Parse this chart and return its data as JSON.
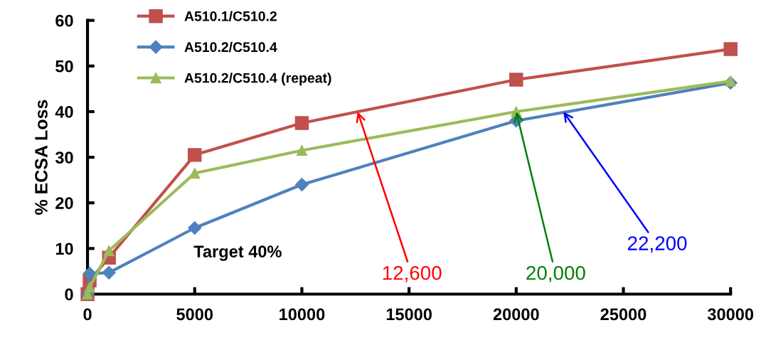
{
  "chart_data": {
    "type": "line",
    "ylabel": "% ECSA Loss",
    "x": [
      0,
      100,
      1000,
      5000,
      10000,
      20000,
      30000
    ],
    "series": [
      {
        "name": "A510.1/C510.2",
        "color": "#c0504d",
        "marker": "square",
        "values": [
          0,
          3,
          8,
          30.5,
          37.5,
          47,
          53.7
        ]
      },
      {
        "name": "A510.2/C510.4",
        "color": "#4f81bd",
        "marker": "diamond",
        "values": [
          0,
          4.5,
          4.7,
          14.5,
          24,
          38,
          46.3
        ]
      },
      {
        "name": "A510.2/C510.4 (repeat)",
        "color": "#9bbb59",
        "marker": "triangle",
        "values": [
          0,
          1.5,
          9.5,
          26.5,
          31.5,
          40,
          46.7
        ]
      }
    ],
    "xlim": [
      0,
      30000
    ],
    "xticks": [
      0,
      5000,
      10000,
      15000,
      20000,
      25000,
      30000
    ],
    "ylim": [
      0,
      60
    ],
    "yticks": [
      0,
      10,
      20,
      30,
      40,
      50,
      60
    ],
    "grid": false,
    "legend": "top left",
    "annotations": [
      "Target 40%",
      {
        "text": "12,600",
        "x": 12600,
        "y": 40
      },
      {
        "text": "20,000",
        "x": 20000,
        "y": 40
      },
      {
        "text": "22,200",
        "x": 22200,
        "y": 40
      }
    ]
  }
}
